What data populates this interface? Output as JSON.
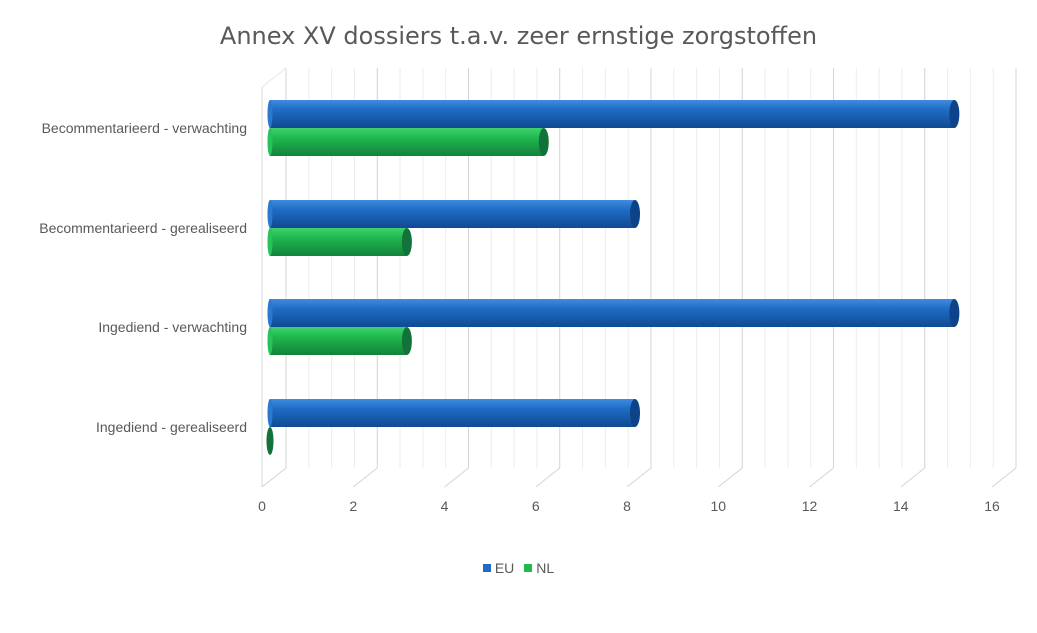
{
  "chart_data": {
    "type": "bar",
    "orientation": "horizontal",
    "style": "3d-cylinder",
    "title": "Annex XV dossiers t.a.v. zeer ernstige zorgstoffen",
    "categories": [
      "Becommentarieerd - verwachting",
      "Becommentarieerd - gerealiseerd",
      "Ingediend - verwachting",
      "Ingediend - gerealiseerd"
    ],
    "series": [
      {
        "name": "EU",
        "color": "#1f6cc4",
        "values": [
          15,
          8,
          15,
          8
        ]
      },
      {
        "name": "NL",
        "color": "#1fb84f",
        "values": [
          6,
          3,
          3,
          0
        ]
      }
    ],
    "xlim": [
      0,
      16
    ],
    "xticks": [
      "0",
      "2",
      "4",
      "6",
      "8",
      "10",
      "12",
      "14",
      "16"
    ],
    "grid": true,
    "legend_position": "bottom"
  }
}
